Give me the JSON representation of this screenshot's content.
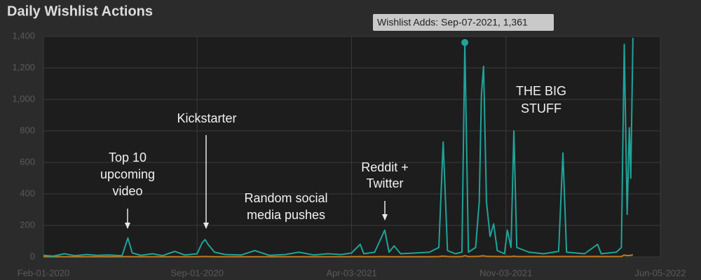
{
  "chart_data": {
    "type": "line",
    "title": "Daily Wishlist Actions",
    "tooltip": "Wishlist Adds: Sep-07-2021, 1,361",
    "annotations": [
      [
        "Top 10",
        "upcoming",
        "video"
      ],
      [
        "Kickstarter"
      ],
      [
        "Random social",
        "media pushes"
      ],
      [
        "Reddit +",
        "Twitter"
      ],
      [
        "THE BIG",
        "STUFF"
      ]
    ],
    "x": [
      "2020-02-01",
      "2020-02-15",
      "2020-03-01",
      "2020-03-15",
      "2020-04-01",
      "2020-04-15",
      "2020-05-01",
      "2020-05-20",
      "2020-05-28",
      "2020-06-03",
      "2020-06-15",
      "2020-07-01",
      "2020-07-15",
      "2020-08-01",
      "2020-08-15",
      "2020-09-01",
      "2020-09-08",
      "2020-09-12",
      "2020-09-16",
      "2020-09-25",
      "2020-10-10",
      "2020-11-01",
      "2020-11-20",
      "2020-12-10",
      "2021-01-01",
      "2021-01-20",
      "2021-02-10",
      "2021-03-01",
      "2021-03-20",
      "2021-04-03",
      "2021-04-15",
      "2021-04-20",
      "2021-05-05",
      "2021-05-19",
      "2021-05-25",
      "2021-06-01",
      "2021-06-10",
      "2021-07-01",
      "2021-07-20",
      "2021-08-02",
      "2021-08-08",
      "2021-08-14",
      "2021-08-25",
      "2021-09-03",
      "2021-09-07",
      "2021-09-12",
      "2021-09-22",
      "2021-09-27",
      "2021-09-30",
      "2021-10-03",
      "2021-10-07",
      "2021-10-12",
      "2021-10-17",
      "2021-10-22",
      "2021-11-01",
      "2021-11-05",
      "2021-11-10",
      "2021-11-14",
      "2021-11-18",
      "2021-12-05",
      "2021-12-25",
      "2022-01-15",
      "2022-01-21",
      "2022-01-26",
      "2022-02-20",
      "2022-03-10",
      "2022-03-15",
      "2022-04-05",
      "2022-04-12",
      "2022-04-16",
      "2022-04-18",
      "2022-04-20",
      "2022-04-23",
      "2022-04-25",
      "2022-04-28"
    ],
    "series": [
      {
        "name": "Wishlist Adds",
        "color": "#1fa39a",
        "values": [
          10,
          5,
          20,
          8,
          15,
          10,
          12,
          8,
          120,
          25,
          10,
          20,
          8,
          35,
          12,
          20,
          90,
          110,
          80,
          30,
          15,
          12,
          40,
          10,
          15,
          30,
          12,
          20,
          15,
          25,
          80,
          20,
          30,
          170,
          30,
          70,
          20,
          25,
          30,
          60,
          730,
          40,
          20,
          30,
          1361,
          30,
          60,
          350,
          1030,
          1210,
          350,
          130,
          210,
          40,
          20,
          170,
          60,
          800,
          60,
          30,
          20,
          35,
          660,
          30,
          20,
          80,
          20,
          30,
          60,
          1350,
          800,
          270,
          820,
          500,
          1390
        ]
      },
      {
        "color": "#c07a1c",
        "values": [
          1,
          1,
          1,
          1,
          1,
          1,
          1,
          1,
          2,
          1,
          1,
          1,
          1,
          1,
          1,
          1,
          2,
          2,
          2,
          1,
          1,
          1,
          1,
          1,
          1,
          1,
          1,
          1,
          1,
          1,
          2,
          1,
          1,
          2,
          1,
          1,
          1,
          1,
          1,
          2,
          5,
          2,
          1,
          2,
          8,
          2,
          3,
          4,
          6,
          7,
          4,
          3,
          3,
          2,
          2,
          3,
          2,
          5,
          2,
          2,
          2,
          2,
          3,
          2,
          2,
          3,
          2,
          2,
          3,
          12,
          10,
          8,
          10,
          9,
          14
        ]
      }
    ],
    "xlim": [
      "2020-02-01",
      "2022-06-05"
    ],
    "xticks": [
      {
        "value": "2020-02-01",
        "label": "Feb-01-2020"
      },
      {
        "value": "2020-09-01",
        "label": "Sep-01-2020"
      },
      {
        "value": "2021-04-03",
        "label": "Apr-03-2021"
      },
      {
        "value": "2021-11-03",
        "label": "Nov-03-2021"
      },
      {
        "value": "2022-06-05",
        "label": "Jun-05-2022"
      }
    ],
    "ylim": [
      0,
      1400
    ],
    "yticks": [
      0,
      200,
      400,
      600,
      800,
      {
        "value": 1000,
        "label": "1,000"
      },
      {
        "value": 1200,
        "label": "1,200"
      },
      {
        "value": 1400,
        "label": "1,400"
      }
    ],
    "grid": true
  }
}
